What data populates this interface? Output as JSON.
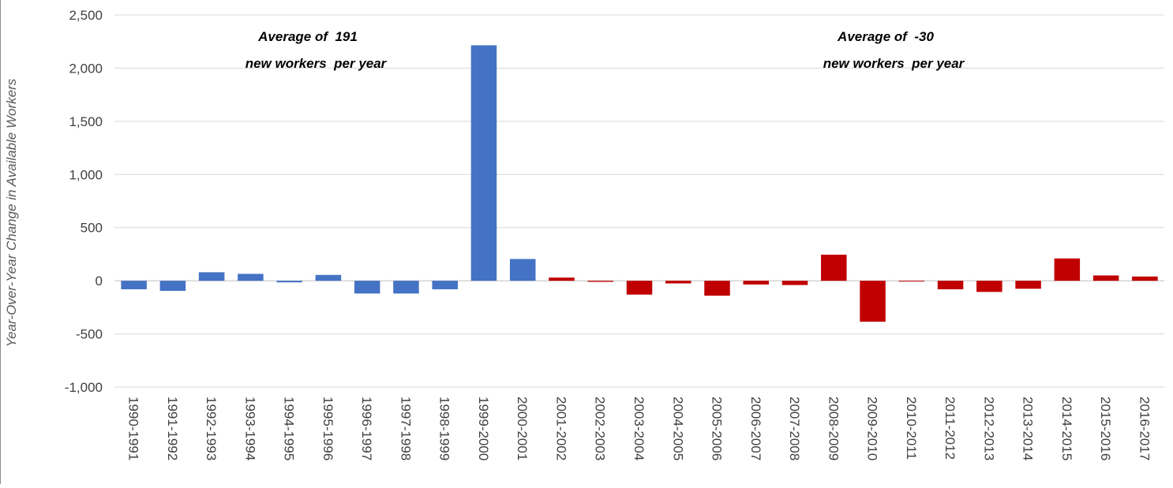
{
  "chart_data": {
    "type": "bar",
    "title": "",
    "xlabel": "",
    "ylabel": "Year-Over-Year Change in Available Workers",
    "ylim": [
      -1000,
      2500
    ],
    "yticks": [
      -1000,
      -500,
      0,
      500,
      1000,
      1500,
      2000,
      2500
    ],
    "ytick_labels": [
      "-1,000",
      "-500",
      "0",
      "500",
      "1,000",
      "1,500",
      "2,000",
      "2,500"
    ],
    "grid": true,
    "legend": "none",
    "categories": [
      "1990-1991",
      "1991-1992",
      "1992-1993",
      "1993-1994",
      "1994-1995",
      "1995-1996",
      "1996-1997",
      "1997-1998",
      "1998-1999",
      "1999-2000",
      "2000-2001",
      "2001-2002",
      "2002-2003",
      "2003-2004",
      "2004-2005",
      "2005-2006",
      "2006-2007",
      "2007-2008",
      "2008-2009",
      "2009-2010",
      "2010-2011",
      "2011-2012",
      "2012-2013",
      "2013-2014",
      "2014-2015",
      "2015-2016",
      "2016-2017"
    ],
    "values": [
      -80,
      -95,
      80,
      65,
      -15,
      55,
      -120,
      -120,
      -80,
      2215,
      205,
      30,
      -10,
      -130,
      -25,
      -140,
      -35,
      -40,
      245,
      -385,
      -5,
      -80,
      -105,
      -75,
      210,
      50,
      40
    ],
    "bar_colors": [
      "#4472C4",
      "#4472C4",
      "#4472C4",
      "#4472C4",
      "#4472C4",
      "#4472C4",
      "#4472C4",
      "#4472C4",
      "#4472C4",
      "#4472C4",
      "#4472C4",
      "#C00000",
      "#C00000",
      "#C00000",
      "#C00000",
      "#C00000",
      "#C00000",
      "#C00000",
      "#C00000",
      "#C00000",
      "#C00000",
      "#C00000",
      "#C00000",
      "#C00000",
      "#C00000",
      "#C00000",
      "#C00000"
    ],
    "annotations": [
      {
        "line1": "Average of  191",
        "line2": "new workers  per year"
      },
      {
        "line1": "Average of  -30",
        "line2": "new workers  per year"
      }
    ]
  }
}
